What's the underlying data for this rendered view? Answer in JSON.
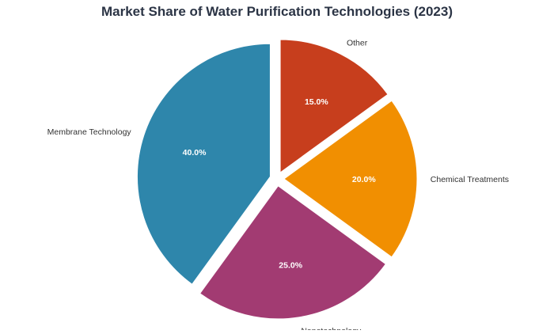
{
  "chart_data": {
    "type": "pie",
    "title": "Market Share of Water Purification Technologies (2023)",
    "start_angle_deg": 90,
    "direction": "clockwise",
    "exploded": true,
    "slices": [
      {
        "label": "Other",
        "value": 15.0,
        "pct_label": "15.0%",
        "color": "#c73e1d"
      },
      {
        "label": "Chemical Treatments",
        "value": 20.0,
        "pct_label": "20.0%",
        "color": "#f18f01"
      },
      {
        "label": "Nanotechnology",
        "value": 25.0,
        "pct_label": "25.0%",
        "color": "#a23b72"
      },
      {
        "label": "Membrane Technology",
        "value": 40.0,
        "pct_label": "40.0%",
        "color": "#2e86ab"
      }
    ]
  }
}
